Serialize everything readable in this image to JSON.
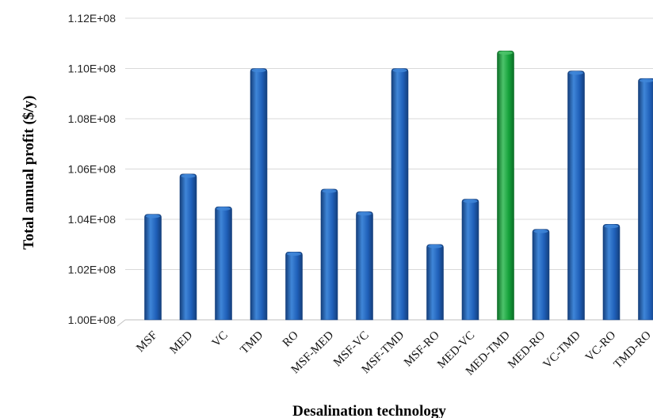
{
  "chart_data": {
    "type": "bar",
    "title": "",
    "xlabel": "Desalination technology",
    "ylabel": "Total annual profit ($/y)",
    "ylim": [
      100000000,
      112000000
    ],
    "yticks": [
      100000000,
      102000000,
      104000000,
      106000000,
      108000000,
      110000000,
      112000000
    ],
    "ytick_labels": [
      "1.00E+08",
      "1.02E+08",
      "1.04E+08",
      "1.06E+08",
      "1.08E+08",
      "1.10E+08",
      "1.12E+08"
    ],
    "grid": true,
    "style": "3d-cylinder",
    "categories": [
      "MSF",
      "MED",
      "VC",
      "TMD",
      "RO",
      "MSF-MED",
      "MSF-VC",
      "MSF-TMD",
      "MSF-RO",
      "MED-VC",
      "MED-TMD",
      "MED-RO",
      "VC-TMD",
      "VC-RO",
      "TMD-RO"
    ],
    "values": [
      104200000,
      105800000,
      104500000,
      110000000,
      102700000,
      105200000,
      104300000,
      110000000,
      103000000,
      104800000,
      110700000,
      103600000,
      109900000,
      103800000,
      109600000
    ],
    "colors": {
      "default": "#1f5fb8",
      "default_dark": "#143f7c",
      "default_light": "#3f86d8",
      "highlight": "#14a03a",
      "highlight_dark": "#0c6e27",
      "highlight_light": "#4cc36a"
    },
    "highlight_category": "MED-TMD"
  }
}
